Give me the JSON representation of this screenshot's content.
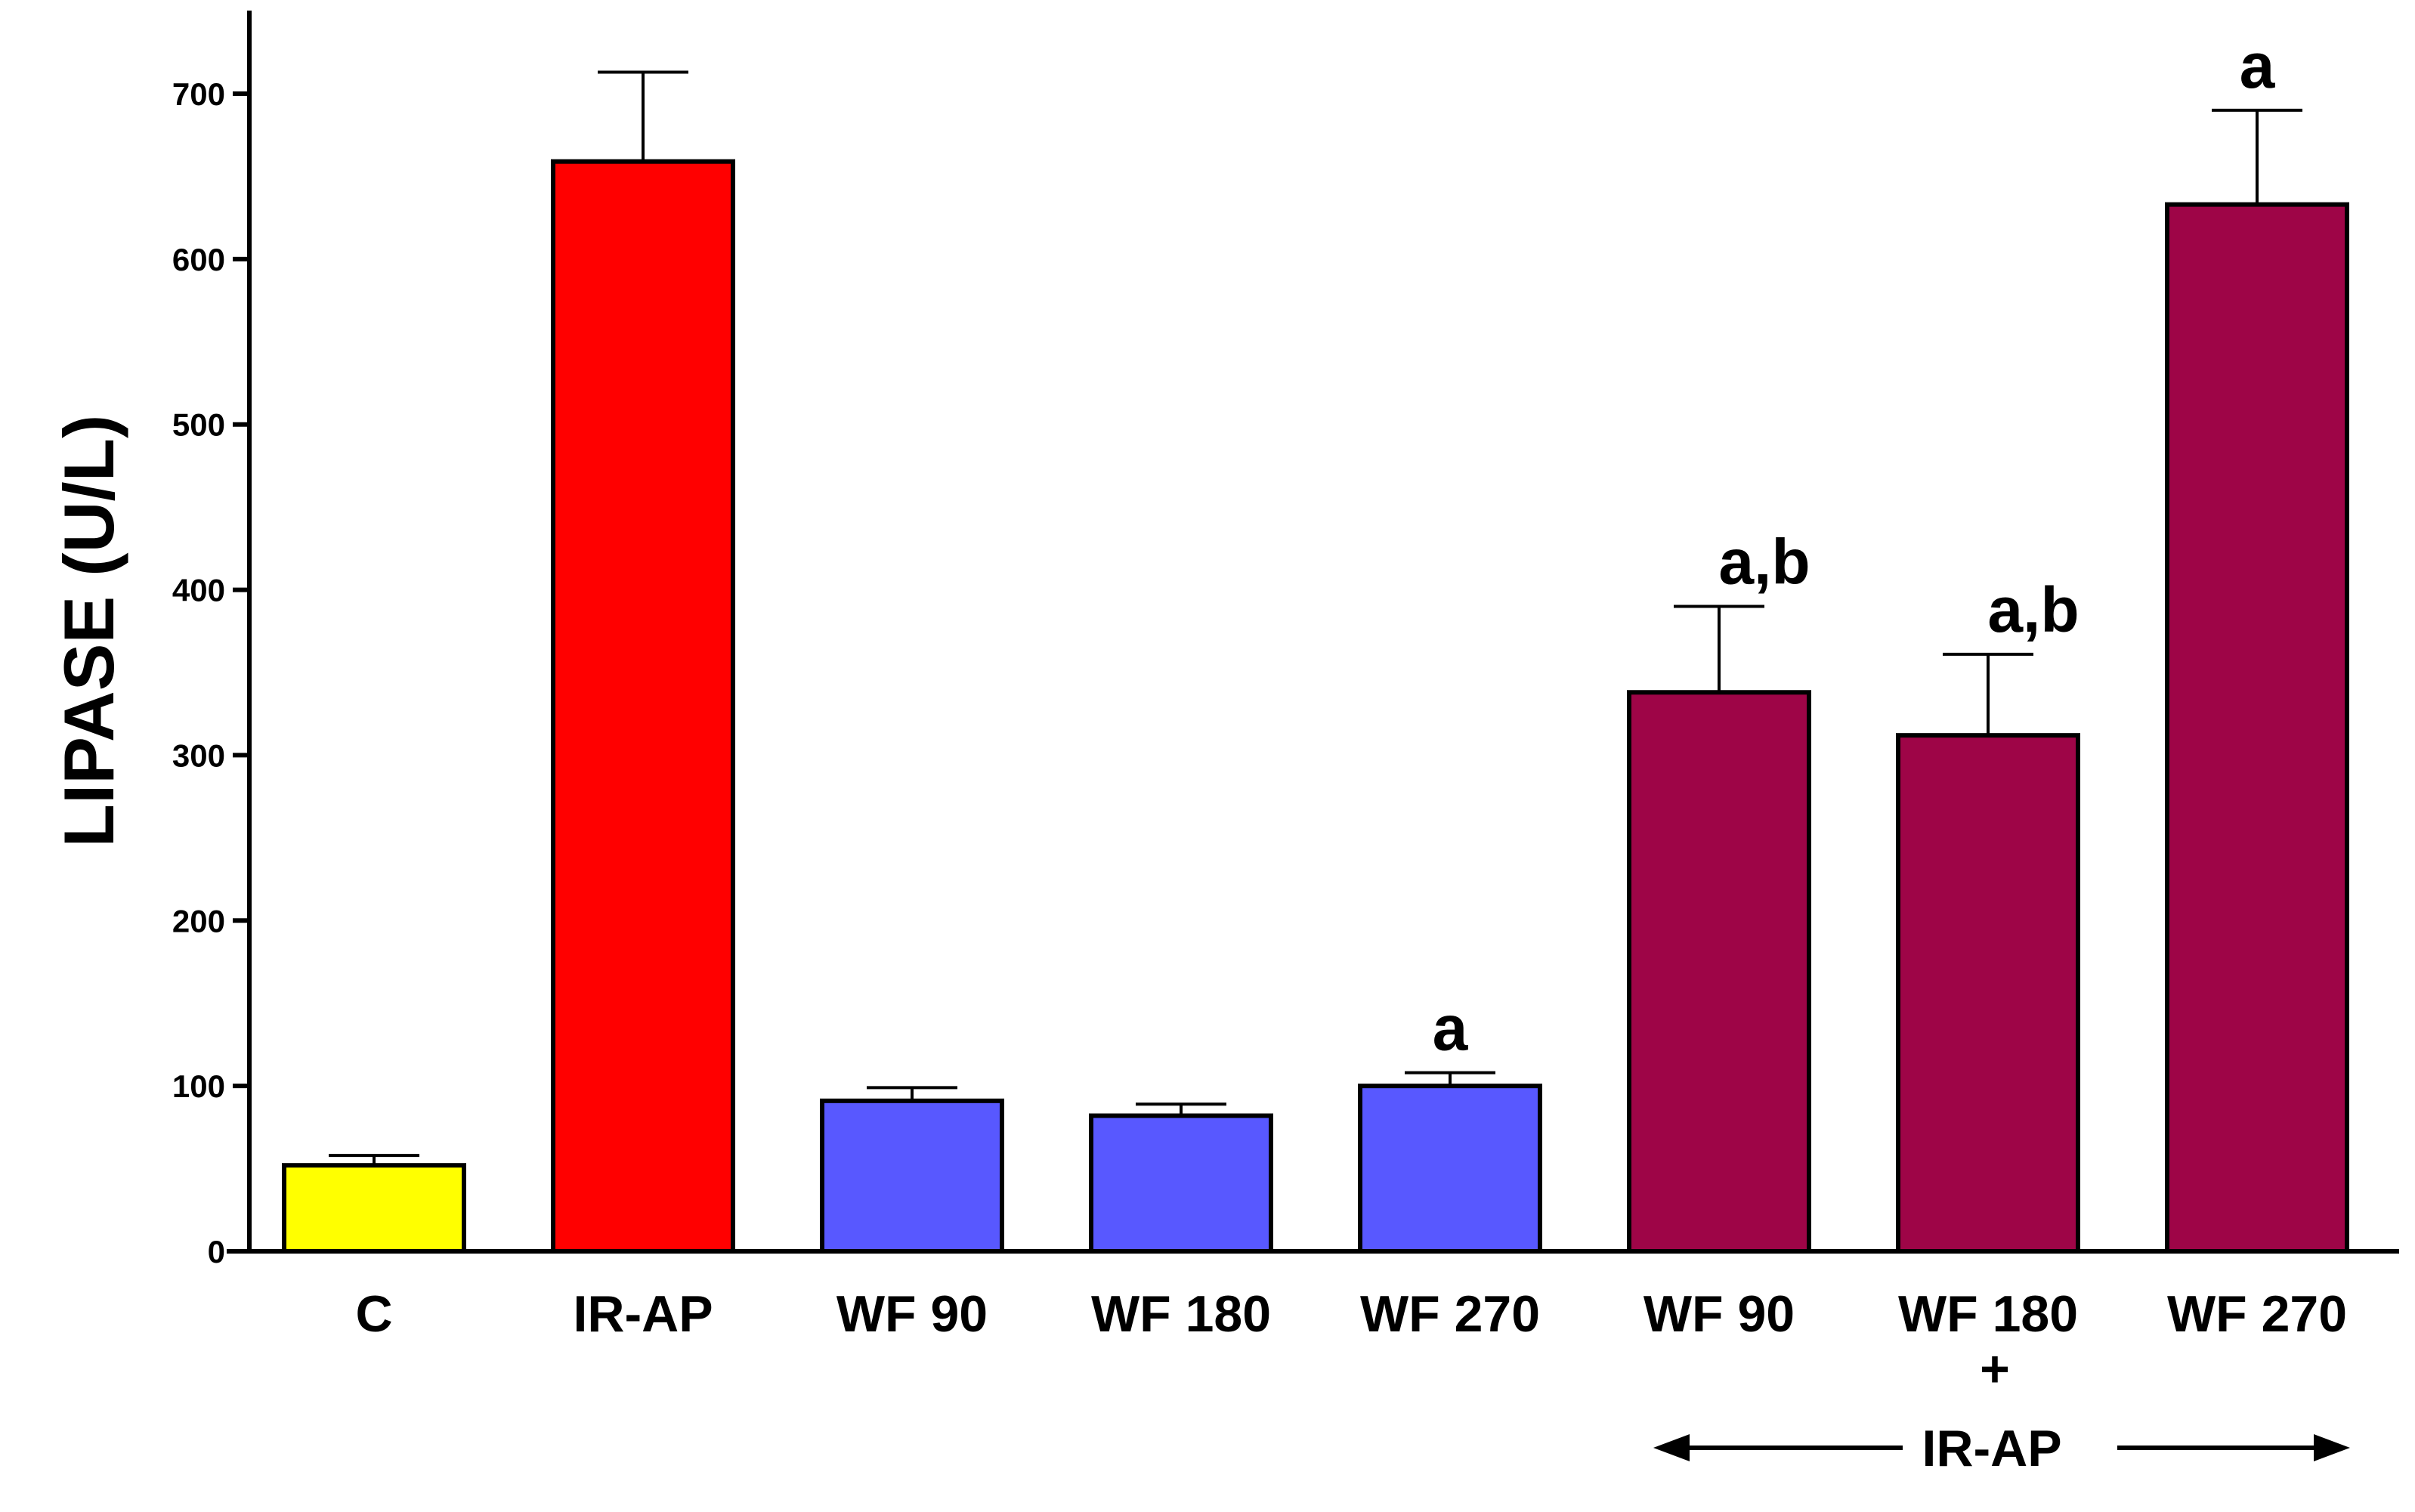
{
  "chart_data": {
    "type": "bar",
    "title": "",
    "xlabel": "",
    "ylabel": "LIPASE (U/L)",
    "ylim": [
      0,
      750
    ],
    "yticks": [
      0,
      100,
      200,
      300,
      400,
      500,
      600,
      700
    ],
    "grid": false,
    "categories": [
      "C",
      "IR-AP",
      "WF 90",
      "WF 180",
      "WF 270",
      "WF 90",
      "WF 180",
      "WF 270"
    ],
    "values": [
      52,
      659,
      91,
      82,
      100,
      338,
      312,
      633
    ],
    "errors": [
      6,
      54,
      8,
      7,
      8,
      52,
      49,
      57
    ],
    "colors": [
      "#FFFF00",
      "#FF0000",
      "#5858FF",
      "#5858FF",
      "#5858FF",
      "#9E0547",
      "#9E0547",
      "#9E0547"
    ],
    "annotations": [
      "",
      "",
      "",
      "",
      "a",
      "a,b",
      "a,b",
      "a"
    ],
    "group": {
      "plus": "+",
      "label": "IR-AP"
    }
  }
}
